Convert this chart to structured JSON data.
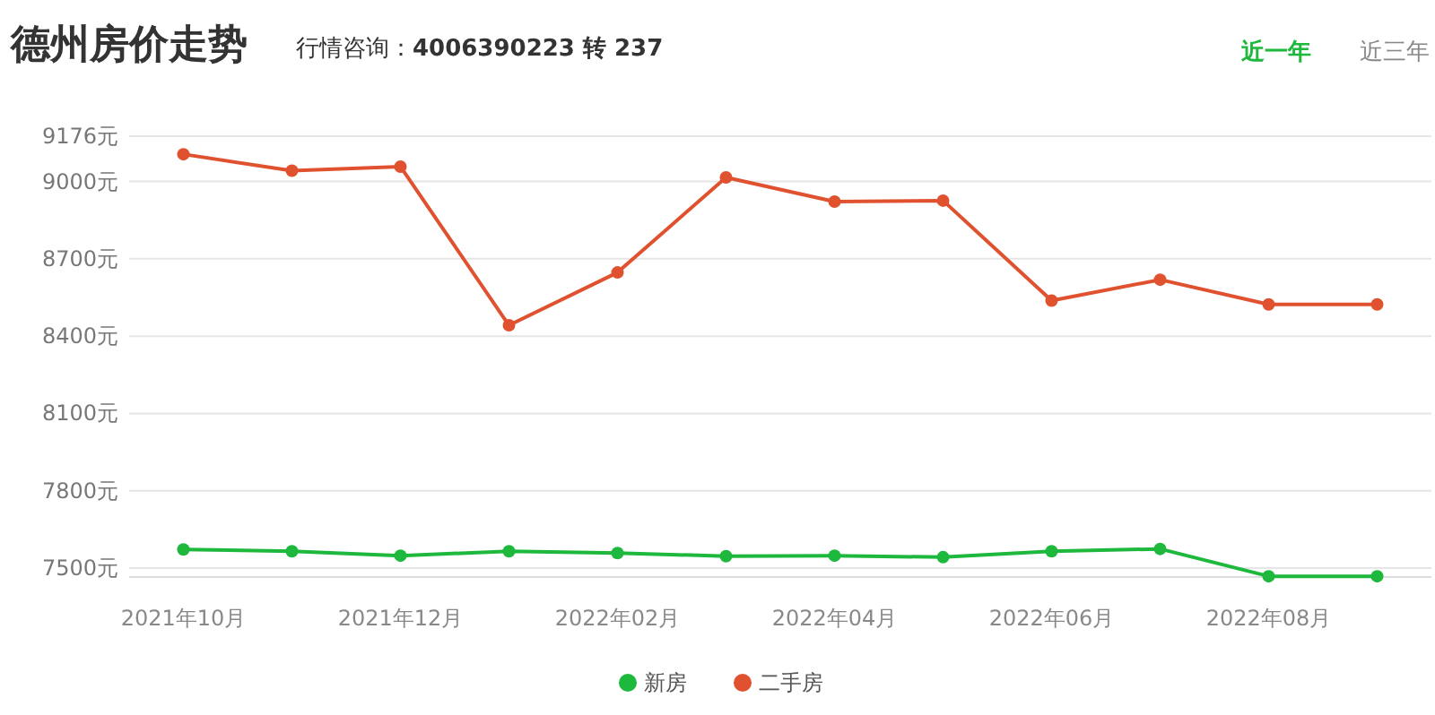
{
  "chart_data": {
    "type": "line",
    "title": "德州房价走势",
    "subtitle": "行情咨询：**4006390223 转 237**",
    "annotations": [
      "近一年",
      "近三年"
    ],
    "categories": [
      "2021年10月",
      null,
      "2021年12月",
      null,
      "2022年02月",
      null,
      "2022年04月",
      null,
      "2022年06月",
      null,
      "2022年08月",
      null
    ],
    "series": [
      {
        "name": "新房",
        "color": "#1db83c",
        "values": [
          7572,
          7565,
          7548,
          7565,
          7558,
          7546,
          7548,
          7542,
          7565,
          7574,
          7468,
          7468
        ]
      },
      {
        "name": "二手房",
        "color": "#e0522f",
        "values": [
          9106,
          9042,
          9058,
          8442,
          8647,
          9016,
          8922,
          8926,
          8538,
          8619,
          8523,
          8523
        ]
      }
    ],
    "ylim": [
      7465,
      9176
    ],
    "yticks": [
      {
        "value": 7500,
        "label": "7500元"
      },
      {
        "value": 7800,
        "label": "7800元"
      },
      {
        "value": 8100,
        "label": "8100元"
      },
      {
        "value": 8400,
        "label": "8400元"
      },
      {
        "value": 8700,
        "label": "8700元"
      },
      {
        "value": 9000,
        "label": "9000元"
      },
      {
        "value": 9176,
        "label": "9176元"
      }
    ],
    "grid": "y",
    "legend": "bottom",
    "marker": "circle",
    "line_style": "solid"
  }
}
